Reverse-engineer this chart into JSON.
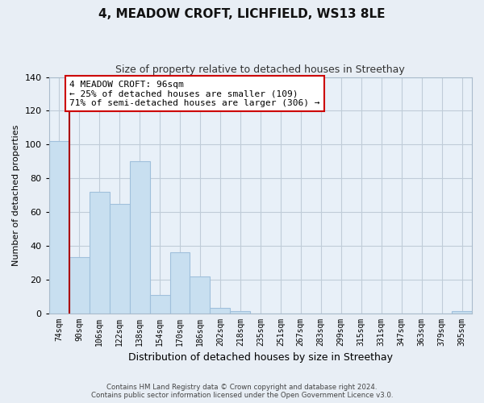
{
  "title": "4, MEADOW CROFT, LICHFIELD, WS13 8LE",
  "subtitle": "Size of property relative to detached houses in Streethay",
  "xlabel": "Distribution of detached houses by size in Streethay",
  "ylabel": "Number of detached properties",
  "bar_labels": [
    "74sqm",
    "90sqm",
    "106sqm",
    "122sqm",
    "138sqm",
    "154sqm",
    "170sqm",
    "186sqm",
    "202sqm",
    "218sqm",
    "235sqm",
    "251sqm",
    "267sqm",
    "283sqm",
    "299sqm",
    "315sqm",
    "331sqm",
    "347sqm",
    "363sqm",
    "379sqm",
    "395sqm"
  ],
  "bar_values": [
    102,
    33,
    72,
    65,
    90,
    11,
    36,
    22,
    3,
    1,
    0,
    0,
    0,
    0,
    0,
    0,
    0,
    0,
    0,
    0,
    1
  ],
  "bar_color": "#c8dff0",
  "bar_edge_color": "#a0c0dc",
  "property_line_color": "#aa0000",
  "annotation_text_line1": "4 MEADOW CROFT: 96sqm",
  "annotation_text_line2": "← 25% of detached houses are smaller (109)",
  "annotation_text_line3": "71% of semi-detached houses are larger (306) →",
  "annotation_box_color": "#ffffff",
  "annotation_box_edge_color": "#cc0000",
  "ylim": [
    0,
    140
  ],
  "yticks": [
    0,
    20,
    40,
    60,
    80,
    100,
    120,
    140
  ],
  "footer_line1": "Contains HM Land Registry data © Crown copyright and database right 2024.",
  "footer_line2": "Contains public sector information licensed under the Open Government Licence v3.0.",
  "background_color": "#e8eef5",
  "plot_bg_color": "#e8f0f8",
  "grid_color": "#c0ccd8"
}
